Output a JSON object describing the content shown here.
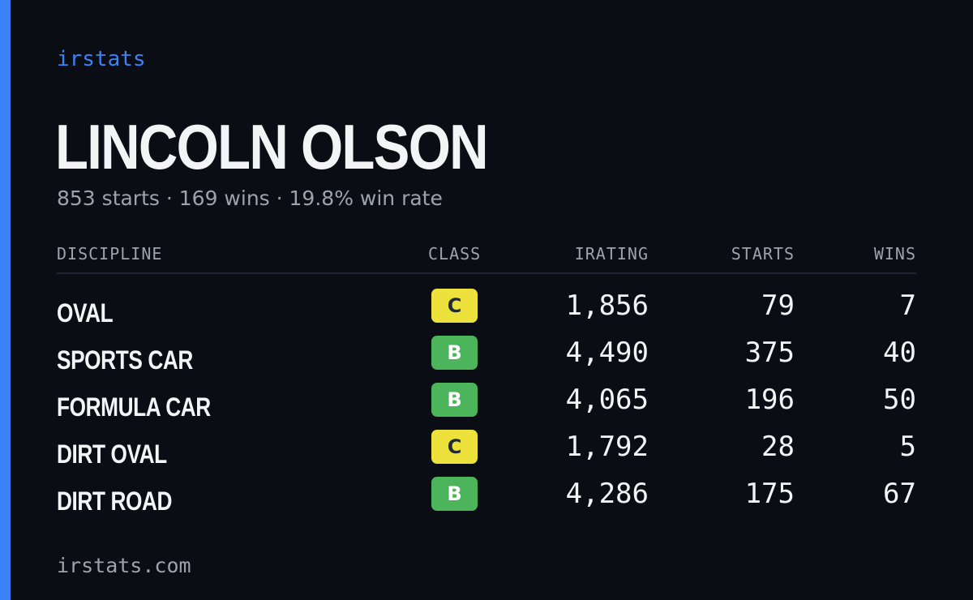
{
  "brand": "irstats",
  "player": {
    "name": "LINCOLN OLSON",
    "summary": "853 starts · 169 wins · 19.8% win rate"
  },
  "colors": {
    "accent": "#3b82f6",
    "background": "#0a0d14",
    "class_c": "#ede13c",
    "class_b": "#4cb45a"
  },
  "table": {
    "headers": {
      "discipline": "DISCIPLINE",
      "class": "CLASS",
      "irating": "IRATING",
      "starts": "STARTS",
      "wins": "WINS"
    },
    "rows": [
      {
        "discipline": "OVAL",
        "class": "C",
        "irating": "1,856",
        "starts": "79",
        "wins": "7"
      },
      {
        "discipline": "SPORTS CAR",
        "class": "B",
        "irating": "4,490",
        "starts": "375",
        "wins": "40"
      },
      {
        "discipline": "FORMULA CAR",
        "class": "B",
        "irating": "4,065",
        "starts": "196",
        "wins": "50"
      },
      {
        "discipline": "DIRT OVAL",
        "class": "C",
        "irating": "1,792",
        "starts": "28",
        "wins": "5"
      },
      {
        "discipline": "DIRT ROAD",
        "class": "B",
        "irating": "4,286",
        "starts": "175",
        "wins": "67"
      }
    ]
  },
  "footer": "irstats.com"
}
